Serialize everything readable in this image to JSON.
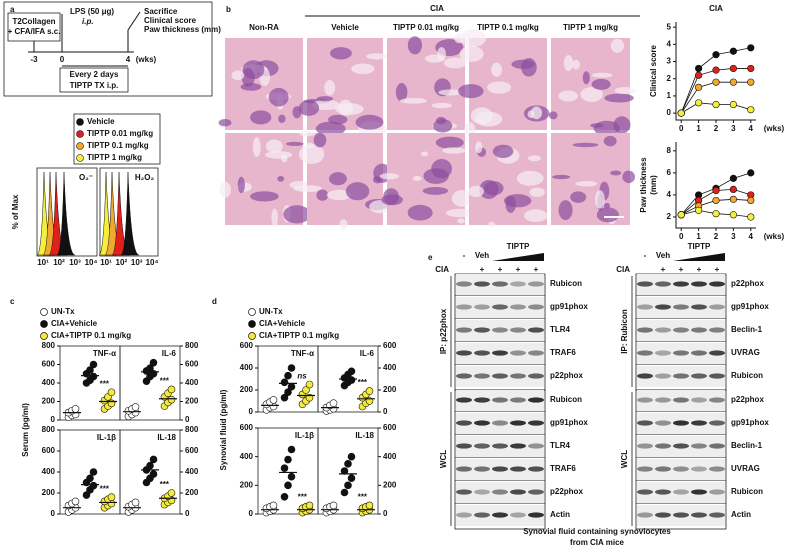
{
  "panel_letters": [
    "a",
    "b",
    "c",
    "d",
    "e"
  ],
  "a": {
    "immunization": [
      "T2Collagen",
      "+ CFA/IFA s.c."
    ],
    "lps": [
      "LPS (50 μg)",
      "i.p."
    ],
    "endpoint": [
      "Sacrifice",
      "Clinical score",
      "Paw thickness (mm)"
    ],
    "treatment": [
      "Every 2 days",
      "TIPTP  TX i.p."
    ],
    "timeline_ticks": [
      "-3",
      "0",
      "4",
      "(wks)"
    ],
    "legend": [
      {
        "label": "Vehicle",
        "color": "#111111"
      },
      {
        "label": "TIPTP 0.01 mg/kg",
        "color": "#e0201b"
      },
      {
        "label": "TIPTP 0.1 mg/kg",
        "color": "#f0a830"
      },
      {
        "label": "TIPTP 1 mg/kg",
        "color": "#f5ee3a"
      }
    ],
    "histograms": {
      "ylabel": "% of Max",
      "xticks": [
        "10¹",
        "10²",
        "10³",
        "10⁴"
      ],
      "labels": [
        "O₂⁻",
        "H₂O₂"
      ]
    }
  },
  "b": {
    "group_header": "CIA",
    "columns": [
      "Non-RA",
      "Vehicle",
      "TIPTP 0.01 mg/kg",
      "TIPTP 0.1 mg/kg",
      "TIPTP 1 mg/kg"
    ],
    "charts": [
      {
        "type": "line",
        "title": "CIA",
        "ylabel": [
          "Clinical score"
        ],
        "xlabel": "(wks)",
        "x": [
          0,
          1,
          2,
          3,
          4
        ],
        "xlim": [
          -0.3,
          4.3
        ],
        "xticks": [
          0,
          1,
          2,
          3,
          4
        ],
        "ylim": [
          -0.4,
          5.3
        ],
        "yticks": [
          0,
          1,
          2,
          3,
          4,
          5
        ],
        "series": [
          {
            "color": "#111111",
            "values": [
              0,
              2.6,
              3.4,
              3.6,
              3.8
            ]
          },
          {
            "color": "#e0201b",
            "values": [
              0,
              2.2,
              2.5,
              2.6,
              2.6
            ]
          },
          {
            "color": "#f0a830",
            "values": [
              0,
              1.5,
              1.8,
              1.8,
              1.8
            ]
          },
          {
            "color": "#f5ee3a",
            "values": [
              0,
              0.6,
              0.5,
              0.5,
              0.2
            ]
          }
        ]
      },
      {
        "type": "line",
        "ylabel": [
          "Paw thickness",
          "(mm)"
        ],
        "xlabel": "(wks)",
        "x": [
          0,
          1,
          2,
          3,
          4
        ],
        "xlim": [
          -0.3,
          4.3
        ],
        "xticks": [
          0,
          1,
          2,
          3,
          4
        ],
        "ylim": [
          1,
          8.8
        ],
        "yticks": [
          2,
          4,
          6,
          8
        ],
        "series": [
          {
            "color": "#111111",
            "values": [
              2.2,
              4.0,
              4.6,
              5.5,
              6.0
            ]
          },
          {
            "color": "#e0201b",
            "values": [
              2.2,
              3.5,
              4.4,
              4.5,
              4.0
            ]
          },
          {
            "color": "#f0a830",
            "values": [
              2.2,
              3.0,
              3.5,
              3.6,
              3.5
            ]
          },
          {
            "color": "#f5ee3a",
            "values": [
              2.2,
              2.6,
              2.3,
              2.2,
              2.0
            ]
          }
        ]
      }
    ]
  },
  "c": {
    "ylabel": "Serum (pg/ml)",
    "legend": [
      {
        "label": "UN-Tx",
        "color": "#ffffff"
      },
      {
        "label": "CIA+Vehicle",
        "color": "#111111"
      },
      {
        "label": "CIA+TIPTP 0.1 mg/kg",
        "color": "#f5ea3b"
      }
    ],
    "ylim": [
      0,
      800
    ],
    "yticks": [
      0,
      200,
      400,
      600,
      800
    ],
    "subplots": [
      {
        "title": "TNF-α",
        "annotation": "***",
        "groups": [
          {
            "values": [
              30,
              50,
              60,
              80,
              100,
              120
            ],
            "mean": 80
          },
          {
            "values": [
              400,
              430,
              470,
              500,
              540,
              600
            ],
            "mean": 480
          },
          {
            "values": [
              120,
              150,
              180,
              210,
              250,
              300
            ],
            "mean": 200
          }
        ]
      },
      {
        "title": "IL-6",
        "annotation": "***",
        "groups": [
          {
            "values": [
              40,
              60,
              80,
              100,
              120,
              140
            ],
            "mean": 90
          },
          {
            "values": [
              420,
              470,
              500,
              530,
              560,
              620
            ],
            "mean": 520
          },
          {
            "values": [
              150,
              190,
              220,
              250,
              290,
              330
            ],
            "mean": 230
          }
        ]
      },
      {
        "title": "IL-1β",
        "annotation": "***",
        "groups": [
          {
            "values": [
              20,
              40,
              60,
              80,
              100,
              120
            ],
            "mean": 60
          },
          {
            "values": [
              180,
              230,
              270,
              300,
              340,
              400
            ],
            "mean": 280
          },
          {
            "values": [
              60,
              80,
              100,
              120,
              140,
              160
            ],
            "mean": 110
          }
        ]
      },
      {
        "title": "IL-18",
        "annotation": "***",
        "groups": [
          {
            "values": [
              20,
              40,
              60,
              70,
              90,
              110
            ],
            "mean": 60
          },
          {
            "values": [
              300,
              340,
              380,
              420,
              460,
              520
            ],
            "mean": 420
          },
          {
            "values": [
              90,
              110,
              130,
              150,
              170,
              200
            ],
            "mean": 150
          }
        ]
      }
    ]
  },
  "d": {
    "ylabel": "Synovial fluid (pg/ml)",
    "legend": [
      {
        "label": "UN-Tx",
        "color": "#ffffff"
      },
      {
        "label": "CIA+Vehicle",
        "color": "#111111"
      },
      {
        "label": "CIA+TIPTP 0.1 mg/kg",
        "color": "#f5ea3b"
      }
    ],
    "ylim": [
      0,
      600
    ],
    "yticks": [
      0,
      200,
      400,
      600
    ],
    "subplots": [
      {
        "title": "TNF-α",
        "annotation": "ns",
        "groups": [
          {
            "values": [
              20,
              40,
              50,
              70,
              90,
              110
            ],
            "mean": 60
          },
          {
            "values": [
              130,
              180,
              230,
              270,
              330,
              400
            ],
            "mean": 260
          },
          {
            "values": [
              70,
              100,
              130,
              160,
              200,
              250
            ],
            "mean": 150
          }
        ]
      },
      {
        "title": "IL-6",
        "annotation": "***",
        "groups": [
          {
            "values": [
              10,
              20,
              30,
              40,
              60,
              80
            ],
            "mean": 40
          },
          {
            "values": [
              240,
              270,
              290,
              310,
              340,
              370
            ],
            "mean": 300
          },
          {
            "values": [
              50,
              80,
              100,
              130,
              160,
              190
            ],
            "mean": 120
          }
        ]
      },
      {
        "title": "IL-1β",
        "annotation": "***",
        "groups": [
          {
            "values": [
              10,
              20,
              30,
              40,
              50,
              60
            ],
            "mean": 30
          },
          {
            "values": [
              120,
              200,
              260,
              320,
              380,
              450
            ],
            "mean": 290
          },
          {
            "values": [
              10,
              20,
              30,
              40,
              50,
              60
            ],
            "mean": 30
          }
        ]
      },
      {
        "title": "IL-18",
        "annotation": "***",
        "groups": [
          {
            "values": [
              10,
              20,
              30,
              40,
              50,
              60
            ],
            "mean": 30
          },
          {
            "values": [
              150,
              200,
              250,
              300,
              350,
              400
            ],
            "mean": 280
          },
          {
            "values": [
              10,
              20,
              30,
              40,
              50,
              60
            ],
            "mean": 30
          }
        ]
      }
    ]
  },
  "e": {
    "lanes": {
      "untreated": "-",
      "vehicle": "Veh",
      "treatment": "TIPTP"
    },
    "cia": {
      "label": "CIA",
      "marks": [
        "+",
        "+",
        "+",
        "+"
      ]
    },
    "blots": [
      {
        "ip_label": "IP: p22phox",
        "wcl_label": "WCL",
        "ip_rows": [
          "Rubicon",
          "gp91phox",
          "TLR4",
          "TRAF6",
          "p22phox"
        ],
        "wcl_rows": [
          "Rubicon",
          "gp91phox",
          "TLR4",
          "TRAF6",
          "p22phox",
          "Actin"
        ]
      },
      {
        "ip_label": "IP: Rubicon",
        "wcl_label": "WCL",
        "ip_rows": [
          "p22phox",
          "gp91phox",
          "Beclin-1",
          "UVRAG",
          "Rubicon"
        ],
        "wcl_rows": [
          "p22phox",
          "gp91phox",
          "Beclin-1",
          "UVRAG",
          "Rubicon",
          "Actin"
        ]
      }
    ],
    "caption": [
      "Synovial fluid containing synoviocytes",
      "from CIA mice"
    ]
  }
}
